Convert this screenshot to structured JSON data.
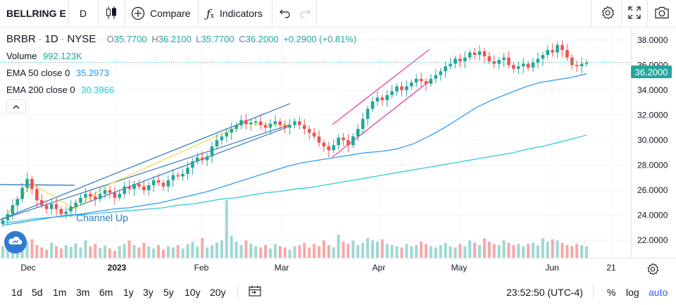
{
  "toolbar": {
    "symbol_search": "BELLRING E",
    "interval": "D",
    "chart_type_icon": "candles-icon",
    "compare": "Compare",
    "indicators": "Indicators",
    "indicators_icon": "fx-icon"
  },
  "legend": {
    "symbol": "BRBR",
    "interval": "1D",
    "exchange": "NYSE",
    "open_label": "O",
    "open": "35.7700",
    "high_label": "H",
    "high": "36.2100",
    "low_label": "L",
    "low": "35.7700",
    "close_label": "C",
    "close": "36.2000",
    "change": "+0.2900 (+0.81%)",
    "volume_label": "Volume",
    "volume": "992.123K",
    "ema50_label": "EMA",
    "ema50_params": "50 close 0",
    "ema50_value": "35.2973",
    "ema200_label": "EMA",
    "ema200_params": "200 close 0",
    "ema200_value": "30.3966"
  },
  "annotations": {
    "channel_label": "Channel Up"
  },
  "colors": {
    "up": "#26a69a",
    "down": "#ef5350",
    "ema50": "#2196f3",
    "ema200": "#26c6da",
    "channel_blue": "#1e6fbf",
    "channel_pink": "#e91e8c",
    "yellow_line": "#f5d33f",
    "price_tag": "#26a69a"
  },
  "price_axis": {
    "labels": [
      "38.0000",
      "36.0000",
      "34.0000",
      "32.0000",
      "30.0000",
      "28.0000",
      "26.0000",
      "24.0000",
      "22.0000"
    ],
    "last_price": "36.2000"
  },
  "time_axis": {
    "labels": [
      "Dec",
      "2023",
      "Feb",
      "Mar",
      "Apr",
      "May",
      "Jun",
      "21"
    ]
  },
  "bottombar": {
    "ranges": [
      "1d",
      "5d",
      "1m",
      "3m",
      "6m",
      "1y",
      "3y",
      "5y",
      "10y",
      "20y"
    ],
    "time": "23:52:50 (UTC-4)",
    "percent": "%",
    "log": "log",
    "auto": "auto"
  },
  "chart_data": {
    "type": "candlestick",
    "symbol": "BRBR",
    "interval": "1D",
    "ylim": [
      20.6,
      39.0
    ],
    "x_ticks": [
      "Dec",
      "2023",
      "Feb",
      "Mar",
      "Apr",
      "May",
      "Jun",
      "21"
    ],
    "ohlc_close_series": [
      23.6,
      24.1,
      24.8,
      25.3,
      26.2,
      26.9,
      26.1,
      25.2,
      24.8,
      24.5,
      24.9,
      24.5,
      24.1,
      24.3,
      24.7,
      25.0,
      25.4,
      25.7,
      25.5,
      25.3,
      25.7,
      26.0,
      25.8,
      25.4,
      25.7,
      26.3,
      26.1,
      26.5,
      26.3,
      26.0,
      26.4,
      26.8,
      26.6,
      26.3,
      26.8,
      27.2,
      27.1,
      27.3,
      27.8,
      28.3,
      28.6,
      28.4,
      28.7,
      29.5,
      30.0,
      30.3,
      30.6,
      30.9,
      31.2,
      31.6,
      31.3,
      31.4,
      31.5,
      31.2,
      31.0,
      31.3,
      31.5,
      31.2,
      31.0,
      31.2,
      31.5,
      31.2,
      30.9,
      30.6,
      30.3,
      29.8,
      29.5,
      29.2,
      29.6,
      30.2,
      30.0,
      29.6,
      30.3,
      30.9,
      31.7,
      32.5,
      33.1,
      33.4,
      33.2,
      33.6,
      33.9,
      34.3,
      34.0,
      34.3,
      34.6,
      34.9,
      34.7,
      34.5,
      34.9,
      35.2,
      35.5,
      35.9,
      36.1,
      36.5,
      36.3,
      36.6,
      37.0,
      36.8,
      37.1,
      36.7,
      36.3,
      36.1,
      36.4,
      36.6,
      36.0,
      35.7,
      35.9,
      36.1,
      35.8,
      36.2,
      36.5,
      36.8,
      37.2,
      37.0,
      37.6,
      37.2,
      36.6,
      36.0,
      35.9,
      36.1,
      36.2
    ],
    "ema50": [
      23.2,
      23.4,
      23.6,
      23.8,
      24.0,
      24.1,
      24.3,
      24.5,
      24.6,
      24.8,
      25.0,
      25.3,
      25.6,
      25.9,
      26.3,
      26.7,
      27.1,
      27.5,
      27.9,
      28.2,
      28.4,
      28.6,
      28.8,
      29.0,
      29.1,
      29.3,
      29.7,
      30.3,
      31.0,
      31.8,
      32.6,
      33.2,
      33.7,
      34.2,
      34.6,
      34.8,
      35.0,
      35.3
    ],
    "ema200": [
      23.4,
      23.5,
      23.7,
      23.8,
      23.9,
      24.0,
      24.1,
      24.2,
      24.3,
      24.4,
      24.5,
      24.6,
      24.8,
      24.9,
      25.1,
      25.3,
      25.4,
      25.6,
      25.8,
      25.9,
      26.1,
      26.2,
      26.4,
      26.6,
      26.8,
      27.0,
      27.2,
      27.4,
      27.6,
      27.8,
      28.0,
      28.2,
      28.4,
      28.6,
      28.8,
      29.0,
      29.3,
      29.5,
      29.8,
      30.1,
      30.4
    ],
    "volume_relative": [
      0.2,
      0.15,
      0.18,
      0.24,
      0.12,
      0.28,
      0.32,
      0.22,
      0.18,
      0.14,
      0.26,
      0.2,
      0.16,
      0.22,
      0.19,
      0.25,
      0.18,
      0.3,
      0.2,
      0.24,
      0.17,
      0.21,
      0.16,
      0.12,
      0.2,
      0.24,
      0.3,
      0.22,
      0.18,
      0.26,
      0.2,
      0.16,
      0.22,
      0.14,
      0.2,
      0.18,
      0.22,
      0.16,
      0.24,
      0.28,
      0.2,
      0.34,
      0.18,
      0.22,
      0.26,
      0.3,
      1.0,
      0.38,
      0.28,
      0.22,
      0.3,
      0.24,
      0.2,
      0.18,
      0.22,
      0.16,
      0.24,
      0.2,
      0.18,
      0.14,
      0.2,
      0.22,
      0.26,
      0.18,
      0.24,
      0.2,
      0.3,
      0.22,
      0.18,
      0.4,
      0.28,
      0.24,
      0.3,
      0.22,
      0.26,
      0.34,
      0.3,
      0.28,
      0.32,
      0.24,
      0.22,
      0.2,
      0.18,
      0.24,
      0.2,
      0.22,
      0.28,
      0.24,
      0.2,
      0.18,
      0.22,
      0.26,
      0.2,
      0.18,
      0.24,
      0.2,
      0.3,
      0.26,
      0.22,
      0.34,
      0.28,
      0.24,
      0.22,
      0.3,
      0.26,
      0.22,
      0.24,
      0.2,
      0.24,
      0.26,
      0.22,
      0.34,
      0.28,
      0.32,
      0.3,
      0.26,
      0.22,
      0.2,
      0.24,
      0.22,
      0.2
    ]
  }
}
